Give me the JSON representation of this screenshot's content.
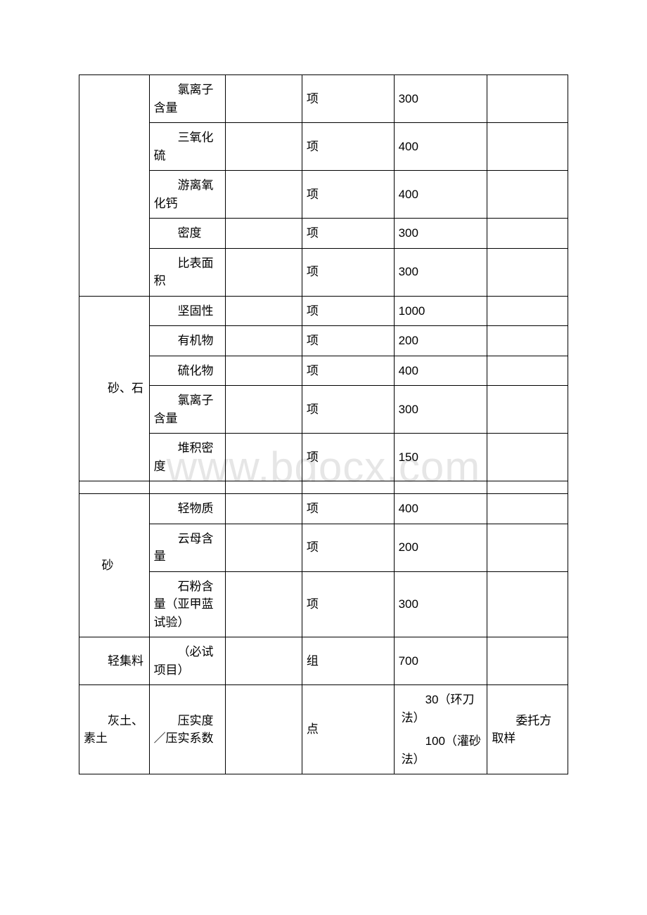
{
  "watermark": "www.bdocx.com",
  "table": {
    "columns": {
      "widths": {
        "cat": 99,
        "item": 108,
        "blank1": 108,
        "unit": 130,
        "price": 132,
        "note": 114
      }
    },
    "cat_labels": {
      "empty1": "",
      "sand_stone": "砂、石",
      "sand": "砂",
      "light_aggregate": "轻集料",
      "lime_soil": "灰土、素土"
    },
    "rows": {
      "r1": {
        "item": "氯离子含量",
        "unit": "项",
        "price": "300",
        "note": ""
      },
      "r2": {
        "item": "三氧化硫",
        "unit": "项",
        "price": "400",
        "note": ""
      },
      "r3": {
        "item": "游离氧化钙",
        "unit": "项",
        "price": "400",
        "note": ""
      },
      "r4": {
        "item": "密度",
        "unit": "项",
        "price": "300",
        "note": ""
      },
      "r5": {
        "item": "比表面积",
        "unit": "项",
        "price": "300",
        "note": ""
      },
      "r6": {
        "item": "坚固性",
        "unit": "项",
        "price": "1000",
        "note": ""
      },
      "r7": {
        "item": "有机物",
        "unit": "项",
        "price": "200",
        "note": ""
      },
      "r8": {
        "item": "硫化物",
        "unit": "项",
        "price": "400",
        "note": ""
      },
      "r9": {
        "item": "氯离子含量",
        "unit": "项",
        "price": "300",
        "note": ""
      },
      "r10": {
        "item": "堆积密度",
        "unit": "项",
        "price": "150",
        "note": ""
      },
      "r11": {
        "item": "轻物质",
        "unit": "项",
        "price": "400",
        "note": ""
      },
      "r12": {
        "item": "云母含量",
        "unit": "项",
        "price": "200",
        "note": ""
      },
      "r13": {
        "item": "石粉含量（亚甲蓝试验）",
        "unit": "项",
        "price": "300",
        "note": ""
      },
      "r14": {
        "item": "（必试项目）",
        "unit": "组",
        "price": "700",
        "note": ""
      },
      "r15": {
        "item": "压实度／压实系数",
        "unit": "点",
        "price1": "30（环刀法）",
        "price2": "100（灌砂法）",
        "note": "委托方取样"
      }
    }
  },
  "colors": {
    "border": "#000000",
    "text": "#000000",
    "bg": "#ffffff",
    "watermark": "#e6e6e6"
  }
}
